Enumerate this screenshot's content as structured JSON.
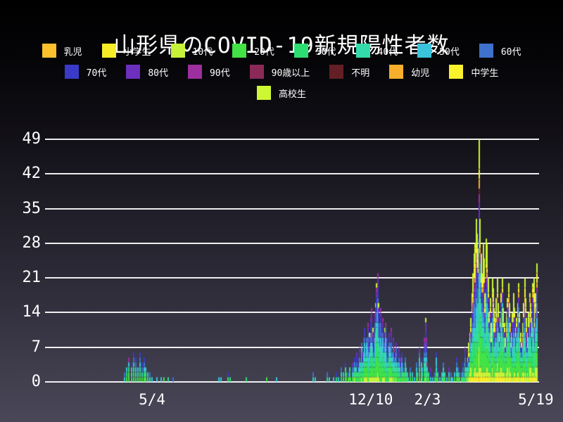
{
  "chart_data": {
    "type": "bar",
    "subtype": "stacked-daily",
    "title": "山形県のCOVID-19新規陽性者数",
    "ylabel": "",
    "xlabel": "",
    "ylim": [
      0,
      49
    ],
    "yticks": [
      0,
      7,
      14,
      21,
      28,
      35,
      42,
      49
    ],
    "grid": "horizontal-white-lines",
    "legend_position": "top",
    "categories": [
      "乳児",
      "小学生",
      "10代",
      "20代",
      "30代",
      "40代",
      "50代",
      "60代",
      "70代",
      "80代",
      "90代",
      "90歳以上",
      "不明",
      "幼児",
      "中学生",
      "高校生"
    ],
    "colors": [
      "#FFC02E",
      "#F6EC27",
      "#C6F23A",
      "#43E245",
      "#2EDD72",
      "#32DBA9",
      "#3AC3DB",
      "#3E71CD",
      "#3A3AC8",
      "#6D2FBE",
      "#9D2F9E",
      "#8B2A58",
      "#641F26",
      "#F8AF2B",
      "#FAF22D",
      "#CDF733"
    ],
    "legend_row_sizes": [
      8,
      7,
      1
    ],
    "x_axis": {
      "total_days": 483,
      "tick_labels": [
        {
          "label": "5/4",
          "day": 101
        },
        {
          "label": "12/10",
          "day": 317
        },
        {
          "label": "2/3",
          "day": 373
        },
        {
          "label": "5/19",
          "day": 480
        }
      ]
    },
    "stack_weights": {
      "default": [
        0.3,
        0.8,
        4,
        12,
        11,
        12,
        13,
        10,
        9,
        6,
        3,
        1.2,
        0.7,
        0.5,
        0.8,
        2
      ],
      "wave3": [
        0.5,
        4,
        6,
        14,
        10,
        10,
        9,
        7,
        6,
        4,
        2,
        1,
        0.5,
        2,
        5,
        12
      ],
      "wave3_start_day": 412
    },
    "bars_format": "[day_index, daily_total_cases]",
    "bars": [
      [
        74,
        2
      ],
      [
        76,
        3
      ],
      [
        78,
        5
      ],
      [
        81,
        4
      ],
      [
        83,
        6
      ],
      [
        85,
        5
      ],
      [
        87,
        3
      ],
      [
        89,
        6
      ],
      [
        91,
        4
      ],
      [
        93,
        5
      ],
      [
        95,
        3
      ],
      [
        97,
        2
      ],
      [
        99,
        2
      ],
      [
        101,
        1
      ],
      [
        106,
        1
      ],
      [
        110,
        1
      ],
      [
        113,
        1
      ],
      [
        117,
        1
      ],
      [
        122,
        1
      ],
      [
        167,
        1
      ],
      [
        169,
        1
      ],
      [
        176,
        2
      ],
      [
        178,
        1
      ],
      [
        194,
        1
      ],
      [
        214,
        1
      ],
      [
        224,
        1
      ],
      [
        260,
        2
      ],
      [
        262,
        1
      ],
      [
        274,
        2
      ],
      [
        276,
        1
      ],
      [
        280,
        1
      ],
      [
        283,
        2
      ],
      [
        285,
        1
      ],
      [
        288,
        3
      ],
      [
        290,
        2
      ],
      [
        292,
        4
      ],
      [
        293,
        2
      ],
      [
        295,
        2
      ],
      [
        296,
        3
      ],
      [
        297,
        1
      ],
      [
        299,
        4
      ],
      [
        300,
        3
      ],
      [
        301,
        5
      ],
      [
        302,
        4
      ],
      [
        303,
        6
      ],
      [
        304,
        3
      ],
      [
        305,
        5
      ],
      [
        306,
        7
      ],
      [
        307,
        4
      ],
      [
        308,
        8
      ],
      [
        309,
        6
      ],
      [
        310,
        9
      ],
      [
        311,
        11
      ],
      [
        312,
        7
      ],
      [
        313,
        9
      ],
      [
        314,
        12
      ],
      [
        315,
        8
      ],
      [
        316,
        10
      ],
      [
        317,
        13
      ],
      [
        318,
        15
      ],
      [
        319,
        11
      ],
      [
        320,
        9
      ],
      [
        321,
        14
      ],
      [
        322,
        16
      ],
      [
        323,
        20
      ],
      [
        324,
        22
      ],
      [
        325,
        16
      ],
      [
        326,
        12
      ],
      [
        327,
        15
      ],
      [
        328,
        10
      ],
      [
        329,
        13
      ],
      [
        330,
        8
      ],
      [
        331,
        11
      ],
      [
        332,
        12
      ],
      [
        333,
        9
      ],
      [
        334,
        7
      ],
      [
        335,
        10
      ],
      [
        336,
        8
      ],
      [
        337,
        11
      ],
      [
        338,
        6
      ],
      [
        339,
        9
      ],
      [
        340,
        7
      ],
      [
        341,
        5
      ],
      [
        342,
        8
      ],
      [
        343,
        6
      ],
      [
        344,
        4
      ],
      [
        345,
        7
      ],
      [
        346,
        5
      ],
      [
        347,
        3
      ],
      [
        348,
        6
      ],
      [
        349,
        4
      ],
      [
        350,
        2
      ],
      [
        351,
        5
      ],
      [
        352,
        3
      ],
      [
        353,
        2
      ],
      [
        354,
        1
      ],
      [
        356,
        3
      ],
      [
        358,
        2
      ],
      [
        360,
        1
      ],
      [
        362,
        4
      ],
      [
        363,
        2
      ],
      [
        365,
        7
      ],
      [
        367,
        5
      ],
      [
        368,
        3
      ],
      [
        370,
        9
      ],
      [
        371,
        13
      ],
      [
        372,
        9
      ],
      [
        373,
        4
      ],
      [
        374,
        2
      ],
      [
        376,
        3
      ],
      [
        378,
        1
      ],
      [
        380,
        2
      ],
      [
        382,
        6
      ],
      [
        383,
        3
      ],
      [
        385,
        1
      ],
      [
        387,
        2
      ],
      [
        389,
        4
      ],
      [
        390,
        2
      ],
      [
        392,
        1
      ],
      [
        394,
        3
      ],
      [
        396,
        2
      ],
      [
        398,
        1
      ],
      [
        400,
        2
      ],
      [
        402,
        5
      ],
      [
        403,
        3
      ],
      [
        405,
        2
      ],
      [
        407,
        2
      ],
      [
        408,
        4
      ],
      [
        409,
        2
      ],
      [
        410,
        7
      ],
      [
        411,
        4
      ],
      [
        412,
        3
      ],
      [
        413,
        5
      ],
      [
        414,
        8
      ],
      [
        415,
        10
      ],
      [
        416,
        13
      ],
      [
        417,
        18
      ],
      [
        418,
        22
      ],
      [
        419,
        26
      ],
      [
        420,
        28
      ],
      [
        421,
        33
      ],
      [
        422,
        30
      ],
      [
        423,
        27
      ],
      [
        424,
        49
      ],
      [
        425,
        33
      ],
      [
        426,
        26
      ],
      [
        427,
        22
      ],
      [
        428,
        28
      ],
      [
        429,
        25
      ],
      [
        430,
        18
      ],
      [
        431,
        29
      ],
      [
        432,
        28
      ],
      [
        433,
        21
      ],
      [
        434,
        14
      ],
      [
        435,
        17
      ],
      [
        436,
        12
      ],
      [
        437,
        21
      ],
      [
        438,
        19
      ],
      [
        439,
        15
      ],
      [
        440,
        13
      ],
      [
        441,
        17
      ],
      [
        442,
        21
      ],
      [
        443,
        16
      ],
      [
        444,
        10
      ],
      [
        445,
        13
      ],
      [
        446,
        18
      ],
      [
        447,
        21
      ],
      [
        448,
        15
      ],
      [
        449,
        12
      ],
      [
        450,
        9
      ],
      [
        451,
        14
      ],
      [
        452,
        17
      ],
      [
        453,
        20
      ],
      [
        454,
        16
      ],
      [
        455,
        12
      ],
      [
        456,
        10
      ],
      [
        457,
        14
      ],
      [
        458,
        18
      ],
      [
        459,
        15
      ],
      [
        460,
        11
      ],
      [
        461,
        13
      ],
      [
        462,
        16
      ],
      [
        463,
        20
      ],
      [
        464,
        14
      ],
      [
        465,
        10
      ],
      [
        466,
        8
      ],
      [
        467,
        12
      ],
      [
        468,
        16
      ],
      [
        469,
        21
      ],
      [
        470,
        17
      ],
      [
        471,
        13
      ],
      [
        472,
        10
      ],
      [
        473,
        14
      ],
      [
        474,
        18
      ],
      [
        475,
        16
      ],
      [
        476,
        13
      ],
      [
        477,
        20
      ],
      [
        478,
        21
      ],
      [
        479,
        16
      ],
      [
        480,
        18
      ],
      [
        481,
        24
      ]
    ]
  }
}
